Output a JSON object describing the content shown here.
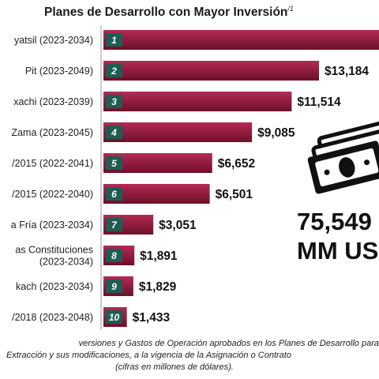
{
  "title": "Planes de Desarrollo con Mayor Inversión",
  "title_note": "/1",
  "colors": {
    "bar_top": "#b52a55",
    "bar_bottom": "#6b1128",
    "rank_box": "#1f5c52",
    "axis_line": "#9a9a9a"
  },
  "chart_data": {
    "type": "bar",
    "orientation": "horizontal",
    "title": "Planes de Desarrollo con Mayor Inversión",
    "xlabel": "",
    "ylabel": "",
    "unit": "millones de dólares",
    "xlim": [
      0,
      17000
    ],
    "grid": false,
    "categories": [
      "yatsil (2023-2034)",
      "Pit (2023-2049)",
      "xachi (2023-2039)",
      "Zama (2023-2045)",
      "/2015 (2022-2041)",
      "/2015 (2022-2040)",
      "a Fría (2023-2034)",
      "as Constituciones (2023-2034)",
      "kach (2023-2034)",
      "/2018 (2023-2048)"
    ],
    "ranks": [
      "1",
      "2",
      "3",
      "4",
      "5",
      "6",
      "7",
      "8",
      "9",
      "10"
    ],
    "values": [
      17000,
      13184,
      11514,
      9085,
      6652,
      6501,
      3051,
      1891,
      1829,
      1433
    ],
    "value_labels": [
      "",
      "$13,184",
      "$11,514",
      "$9,085",
      "$6,652",
      "$6,501",
      "$3,051",
      "$1,891",
      "$1,829",
      "$1,433"
    ]
  },
  "total": {
    "amount": "75,549",
    "unit": "MM US$",
    "icon": "money-bills-icon"
  },
  "footnote": {
    "line1": "versiones y Gastos de Operación aprobados en los Planes de Desarrollo para",
    "line2": "Extracción y sus modificaciones, a la vigencia de la Asignación o Contrato",
    "line3": "(cifras en millones de dólares)."
  }
}
